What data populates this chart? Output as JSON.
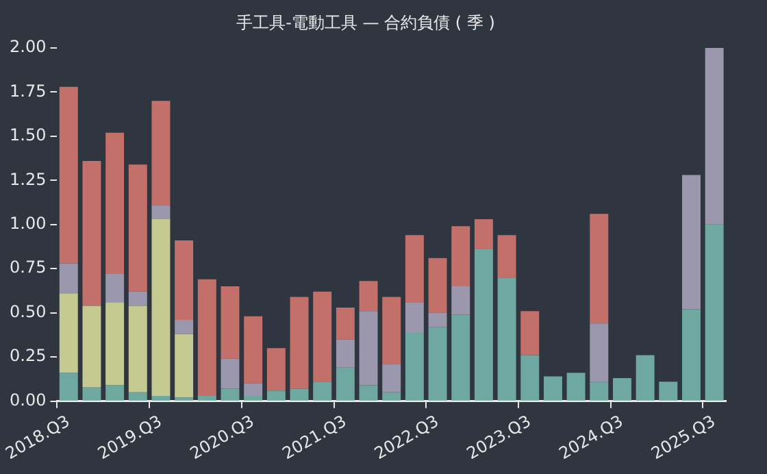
{
  "chart_data": {
    "type": "bar",
    "title": "手工具-電動工具 — 合約負債 ( 季 )",
    "stacked": true,
    "grid": false,
    "legend": false,
    "categories": [
      "2018.Q3",
      null,
      null,
      null,
      "2019.Q3",
      null,
      null,
      null,
      "2020.Q3",
      null,
      null,
      null,
      "2021.Q3",
      null,
      null,
      null,
      "2022.Q3",
      null,
      null,
      null,
      "2023.Q3",
      null,
      null,
      null,
      "2024.Q3",
      null,
      null,
      null,
      "2025.Q3"
    ],
    "ylim": [
      0,
      2.02
    ],
    "yticks": [
      {
        "value": 0,
        "label": "0.00"
      },
      {
        "value": 0.25,
        "label": "0.25"
      },
      {
        "value": 0.5,
        "label": "0.50"
      },
      {
        "value": 0.75,
        "label": "0.75"
      },
      {
        "value": 1,
        "label": "1.00"
      },
      {
        "value": 1.25,
        "label": "1.25"
      },
      {
        "value": 1.5,
        "label": "1.50"
      },
      {
        "value": 1.75,
        "label": "1.75"
      },
      {
        "value": 2,
        "label": "2.00"
      }
    ],
    "series": [
      {
        "color": "#6fa8a0",
        "values": [
          0.16,
          0.08,
          0.09,
          0.05,
          0.03,
          0.02,
          0.03,
          0.07,
          0.03,
          0.06,
          0.07,
          0.11,
          0.19,
          0.09,
          0.05,
          0.39,
          0.42,
          0.49,
          0.86,
          0.7,
          0.26,
          0.14,
          0.16,
          0.11,
          0.13,
          0.26,
          0.11,
          0.52,
          1.0
        ]
      },
      {
        "color": "#c5c992",
        "values": [
          0.45,
          0.46,
          0.47,
          0.49,
          1.0,
          0.36,
          0,
          0,
          0,
          0,
          0,
          0,
          0,
          0,
          0,
          0,
          0,
          0,
          0,
          0,
          0,
          0,
          0,
          0,
          0,
          0,
          0,
          0,
          0
        ]
      },
      {
        "color": "#9b98ae",
        "values": [
          0.17,
          0,
          0.16,
          0.08,
          0.08,
          0.08,
          0,
          0.17,
          0.07,
          0,
          0,
          0,
          0.16,
          0.42,
          0.16,
          0.17,
          0.08,
          0.16,
          0,
          0,
          0,
          0,
          0,
          0.33,
          0,
          0,
          0,
          0.76,
          1.0
        ]
      },
      {
        "color": "#c4706a",
        "values": [
          1.0,
          0.82,
          0.8,
          0.72,
          0.59,
          0.45,
          0.66,
          0.41,
          0.38,
          0.24,
          0.52,
          0.51,
          0.18,
          0.17,
          0.38,
          0.38,
          0.31,
          0.34,
          0.17,
          0.24,
          0.25,
          0,
          0,
          0.62,
          0,
          0,
          0,
          0,
          0
        ]
      }
    ]
  }
}
